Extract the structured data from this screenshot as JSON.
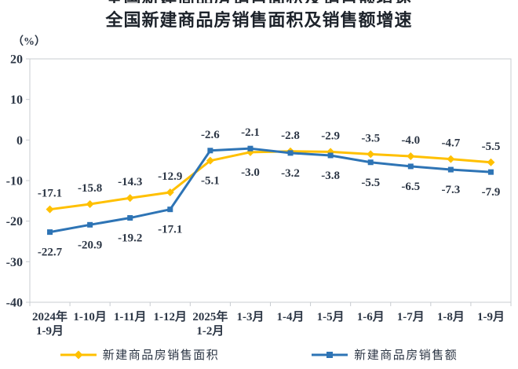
{
  "title": "全国新建商品房销售面积及销售额增速",
  "unit_label": "（%）",
  "chart_data": {
    "type": "line",
    "categories": [
      [
        "2024年",
        "1-9月"
      ],
      [
        "1-10月"
      ],
      [
        "1-11月"
      ],
      [
        "1-12月"
      ],
      [
        "2025年",
        "1-2月"
      ],
      [
        "1-3月"
      ],
      [
        "1-4月"
      ],
      [
        "1-5月"
      ],
      [
        "1-6月"
      ],
      [
        "1-7月"
      ],
      [
        "1-8月"
      ],
      [
        "1-9月"
      ]
    ],
    "series": [
      {
        "name": "新建商品房销售面积",
        "color": "#FFC000",
        "marker": "diamond",
        "values": [
          -17.1,
          -15.8,
          -14.3,
          -12.9,
          -5.1,
          -3.0,
          -2.8,
          -2.9,
          -3.5,
          -4.0,
          -4.7,
          -5.5
        ]
      },
      {
        "name": "新建商品房销售额",
        "color": "#2E74B5",
        "marker": "square",
        "values": [
          -22.7,
          -20.9,
          -19.2,
          -17.1,
          -2.6,
          -2.1,
          -3.2,
          -3.8,
          -5.5,
          -6.5,
          -7.3,
          -7.9
        ]
      }
    ],
    "ylim": [
      -40,
      20
    ],
    "yticks": [
      20,
      10,
      0,
      -10,
      -20,
      -30,
      -40
    ],
    "grid": false,
    "data_labels": true,
    "legend_position": "bottom",
    "axis_color": "#C8CCD1",
    "text_color": "#2C3645"
  }
}
